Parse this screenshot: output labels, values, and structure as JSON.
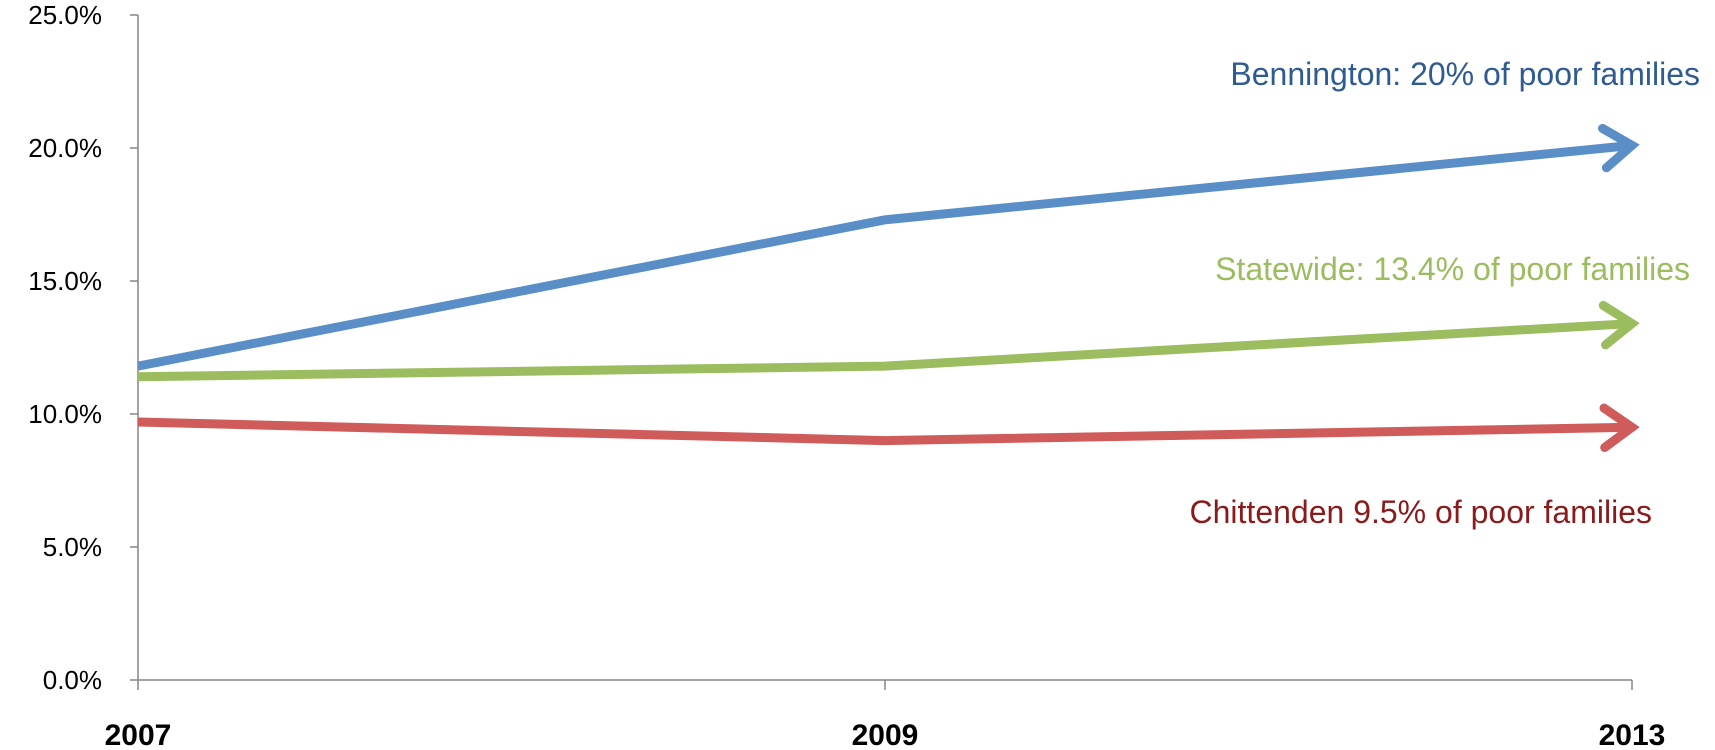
{
  "chart_data": {
    "type": "line",
    "categories": [
      "2007",
      "2009",
      "2013"
    ],
    "ylim": [
      0,
      25
    ],
    "yticks": [
      "0.0%",
      "5.0%",
      "10.0%",
      "15.0%",
      "20.0%",
      "25.0%"
    ],
    "grid": false,
    "series": [
      {
        "key": "bennington",
        "values": [
          11.8,
          17.3,
          20.1
        ],
        "color": "#5a8ec7",
        "label": "Bennington: 20% of poor families",
        "label_color": "#2f5b93"
      },
      {
        "key": "statewide",
        "values": [
          11.4,
          11.8,
          13.4
        ],
        "color": "#9bbd5f",
        "label": "Statewide: 13.4% of poor families",
        "label_color": "#9bbd5f"
      },
      {
        "key": "chittenden",
        "values": [
          9.7,
          9.0,
          9.5
        ],
        "color": "#cf5c5a",
        "label": "Chittenden 9.5% of poor families",
        "label_color": "#8b1a1a"
      }
    ]
  }
}
